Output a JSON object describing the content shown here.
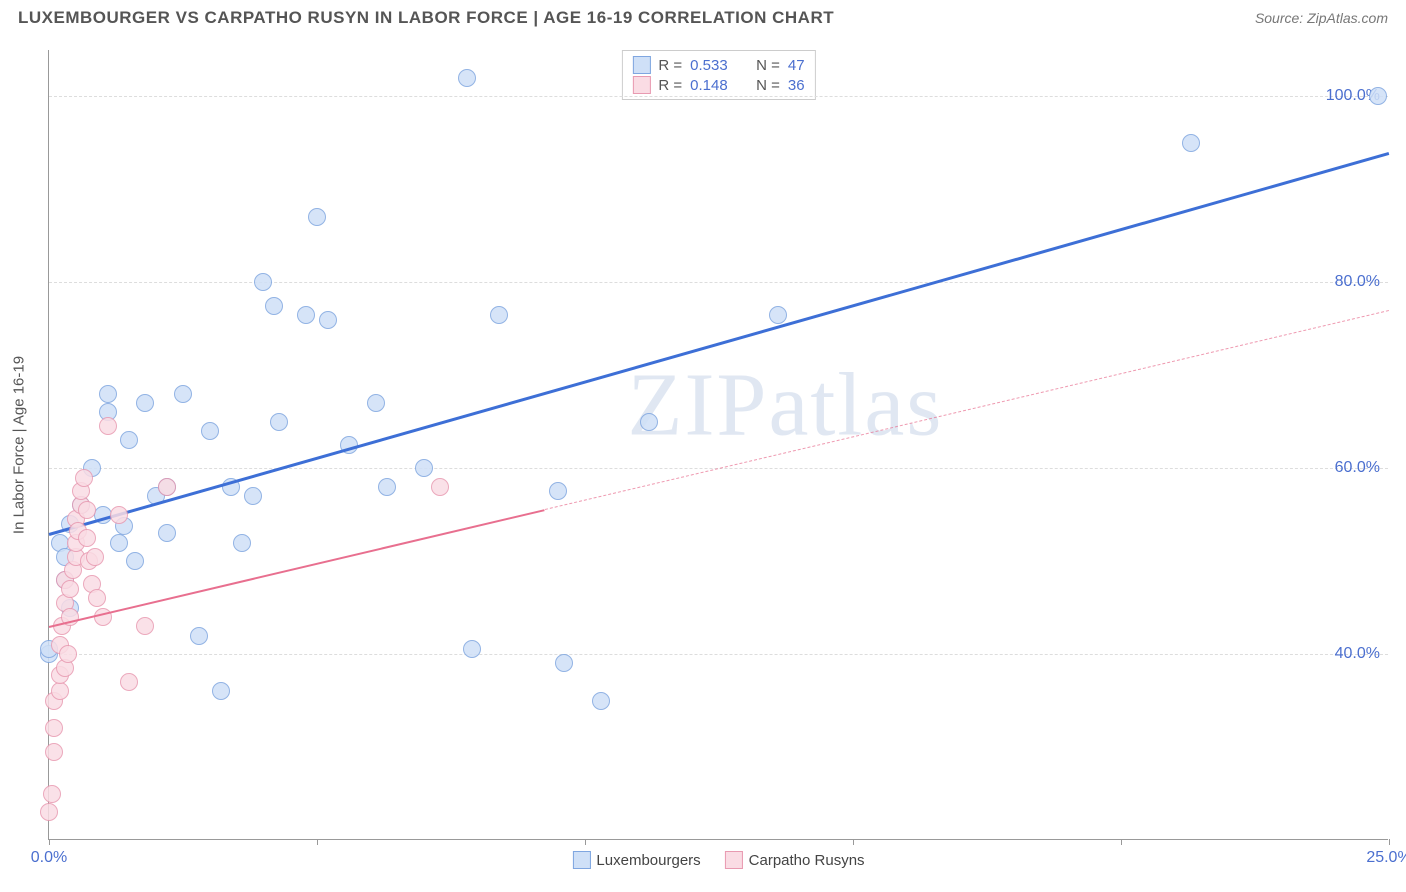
{
  "title": "LUXEMBOURGER VS CARPATHO RUSYN IN LABOR FORCE | AGE 16-19 CORRELATION CHART",
  "source": "Source: ZipAtlas.com",
  "yaxis_title": "In Labor Force | Age 16-19",
  "watermark": "ZIPatlas",
  "chart": {
    "type": "scatter",
    "xlim": [
      0,
      25
    ],
    "ylim": [
      20,
      105
    ],
    "background_color": "#ffffff",
    "grid_color": "#dddddd",
    "axis_color": "#999999",
    "tick_color": "#4b6fcf",
    "tick_fontsize": 16,
    "xticks": [
      0,
      5,
      10,
      15,
      20,
      25
    ],
    "xtick_labels": [
      "0.0%",
      "",
      "",
      "",
      "",
      "25.0%"
    ],
    "yticks": [
      40,
      60,
      80,
      100
    ],
    "ytick_labels": [
      "40.0%",
      "60.0%",
      "80.0%",
      "100.0%"
    ],
    "series": [
      {
        "name": "Luxembourgers",
        "marker_fill": "#cfe0f7",
        "marker_stroke": "#7fa6e0",
        "marker_radius": 9,
        "line_color": "#3d6fd6",
        "line_width": 3,
        "line_dash": "solid",
        "R": "0.533",
        "N": "47",
        "trend": {
          "x1": 0,
          "y1": 53,
          "x2": 25,
          "y2": 94,
          "extent": 1.0
        },
        "points": [
          [
            0,
            40
          ],
          [
            0,
            40.5
          ],
          [
            0.2,
            52
          ],
          [
            0.3,
            50.5
          ],
          [
            0.3,
            48
          ],
          [
            0.4,
            45
          ],
          [
            0.4,
            54
          ],
          [
            0.6,
            56
          ],
          [
            0.8,
            60
          ],
          [
            1.0,
            55
          ],
          [
            1.1,
            66
          ],
          [
            1.1,
            68
          ],
          [
            1.3,
            52
          ],
          [
            1.4,
            53.8
          ],
          [
            1.5,
            63
          ],
          [
            1.6,
            50
          ],
          [
            1.8,
            67
          ],
          [
            2.0,
            57
          ],
          [
            2.2,
            53
          ],
          [
            2.2,
            58
          ],
          [
            2.5,
            68
          ],
          [
            2.8,
            42
          ],
          [
            3.0,
            64
          ],
          [
            3.2,
            36
          ],
          [
            3.4,
            58
          ],
          [
            3.6,
            52
          ],
          [
            3.8,
            57
          ],
          [
            4.0,
            80
          ],
          [
            4.2,
            77.5
          ],
          [
            4.3,
            65
          ],
          [
            4.8,
            76.5
          ],
          [
            5.0,
            87
          ],
          [
            5.2,
            76
          ],
          [
            5.6,
            62.5
          ],
          [
            6.1,
            67
          ],
          [
            6.3,
            58
          ],
          [
            7.0,
            60
          ],
          [
            7.8,
            102
          ],
          [
            7.9,
            40.5
          ],
          [
            8.4,
            76.5
          ],
          [
            9.5,
            57.5
          ],
          [
            9.6,
            39
          ],
          [
            10.3,
            35
          ],
          [
            11.2,
            65
          ],
          [
            13.6,
            76.5
          ],
          [
            21.3,
            95
          ],
          [
            24.8,
            100
          ]
        ]
      },
      {
        "name": "Carpatho Rusyns",
        "marker_fill": "#fadce4",
        "marker_stroke": "#e89ab1",
        "marker_radius": 9,
        "line_color": "#e86f8f",
        "line_width": 2,
        "line_dash": "dashed",
        "R": "0.148",
        "N": "36",
        "trend": {
          "x1": 0,
          "y1": 43,
          "x2": 25,
          "y2": 77,
          "extent_solid": 0.37
        },
        "points": [
          [
            0,
            23
          ],
          [
            0.05,
            25
          ],
          [
            0.1,
            29.5
          ],
          [
            0.1,
            32
          ],
          [
            0.1,
            35
          ],
          [
            0.2,
            36
          ],
          [
            0.2,
            37.8
          ],
          [
            0.3,
            38.5
          ],
          [
            0.2,
            41
          ],
          [
            0.25,
            43
          ],
          [
            0.3,
            45.5
          ],
          [
            0.3,
            48
          ],
          [
            0.35,
            40
          ],
          [
            0.4,
            44
          ],
          [
            0.4,
            47
          ],
          [
            0.45,
            49
          ],
          [
            0.5,
            50.5
          ],
          [
            0.5,
            52
          ],
          [
            0.5,
            54.5
          ],
          [
            0.55,
            53.2
          ],
          [
            0.6,
            56
          ],
          [
            0.6,
            57.5
          ],
          [
            0.65,
            59
          ],
          [
            0.7,
            52.5
          ],
          [
            0.7,
            55.5
          ],
          [
            0.75,
            50
          ],
          [
            0.8,
            47.5
          ],
          [
            0.85,
            50.5
          ],
          [
            0.9,
            46
          ],
          [
            1.0,
            44
          ],
          [
            1.1,
            64.5
          ],
          [
            1.3,
            55
          ],
          [
            1.5,
            37
          ],
          [
            1.8,
            43
          ],
          [
            2.2,
            58
          ],
          [
            7.3,
            58
          ]
        ]
      }
    ],
    "legend_top": {
      "rows": [
        {
          "swatch_fill": "#cfe0f7",
          "swatch_stroke": "#7fa6e0",
          "r_label": "R =",
          "r_val": "0.533",
          "n_label": "N =",
          "n_val": "47"
        },
        {
          "swatch_fill": "#fadce4",
          "swatch_stroke": "#e89ab1",
          "r_label": "R =",
          "r_val": "0.148",
          "n_label": "N =",
          "n_val": "36"
        }
      ]
    },
    "legend_bottom": [
      {
        "swatch_fill": "#cfe0f7",
        "swatch_stroke": "#7fa6e0",
        "label": "Luxembourgers"
      },
      {
        "swatch_fill": "#fadce4",
        "swatch_stroke": "#e89ab1",
        "label": "Carpatho Rusyns"
      }
    ]
  }
}
